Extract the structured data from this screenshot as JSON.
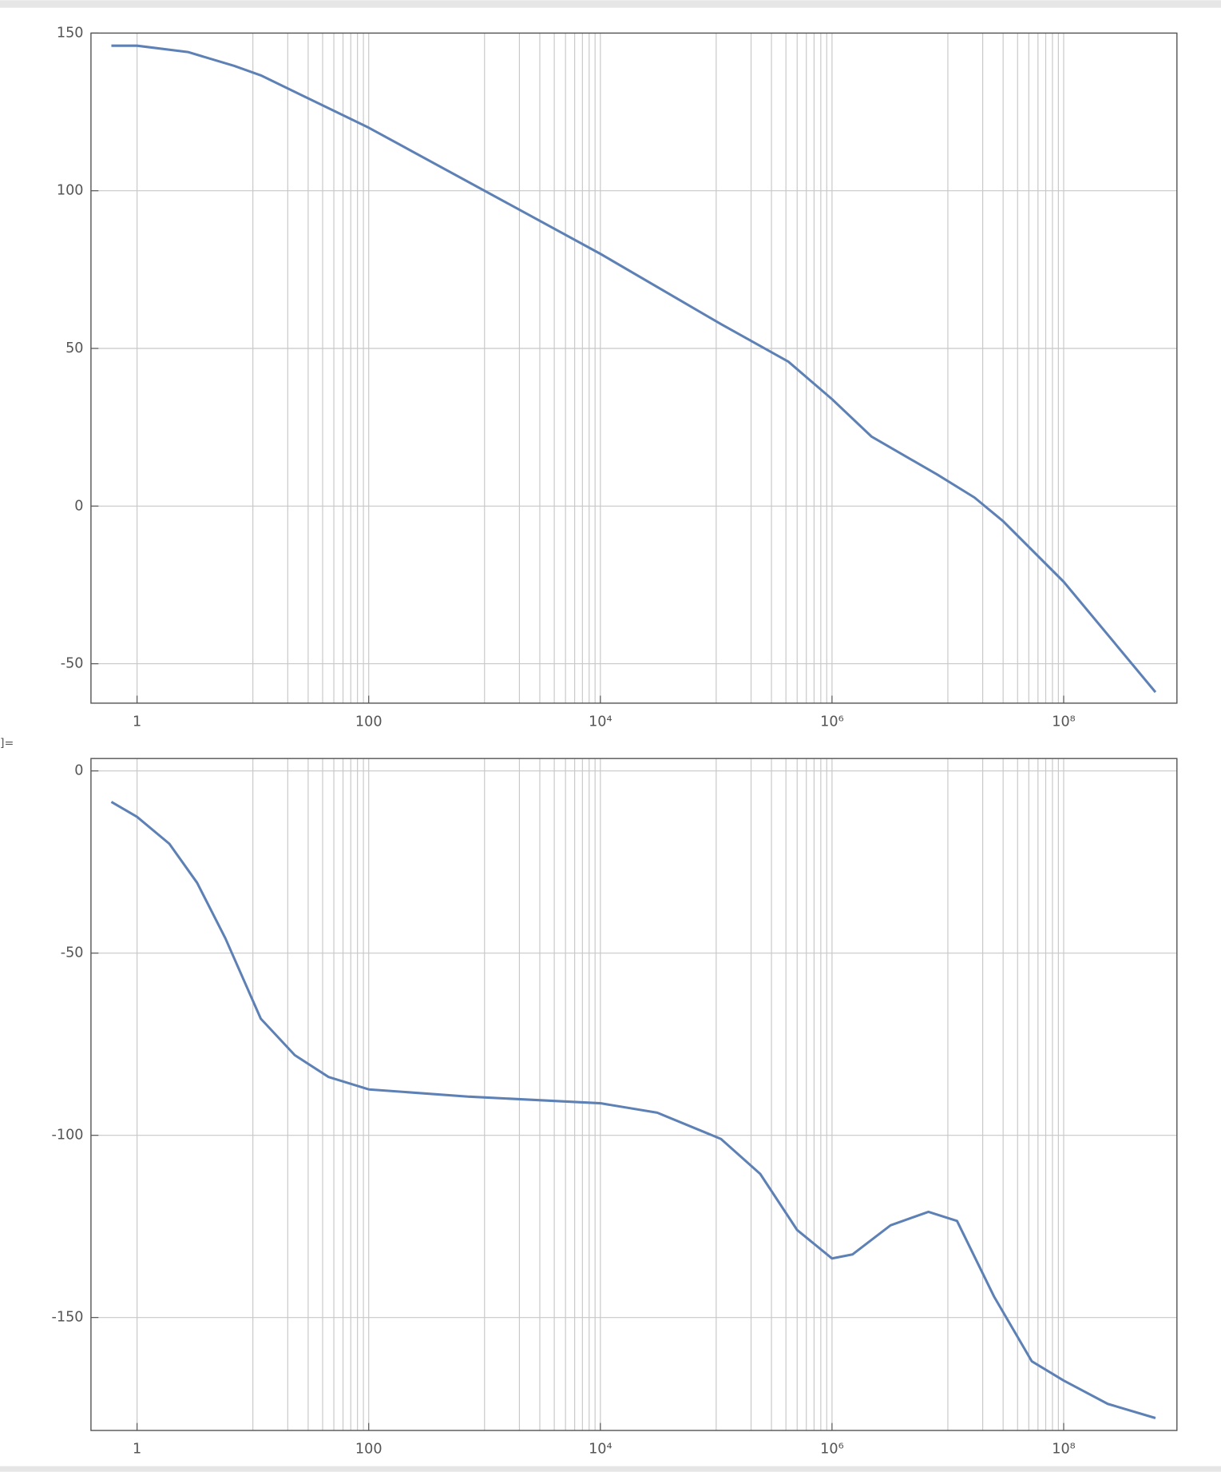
{
  "out_label": "]=",
  "chart_data": [
    {
      "type": "line",
      "xscale": "log",
      "grid": true,
      "color": "#5e81b5",
      "xlim": [
        0.4,
        950000000
      ],
      "ylim": [
        -62.5,
        150
      ],
      "xticks": [
        1,
        100,
        {
          "value": 10000,
          "label": "10⁴"
        },
        {
          "value": 1000000,
          "label": "10⁶"
        },
        {
          "value": 100000000,
          "label": "10⁸"
        }
      ],
      "xgrid": [
        10,
        20,
        30,
        40,
        50,
        60,
        70,
        80,
        90,
        1000,
        2000,
        3000,
        4000,
        5000,
        6000,
        7000,
        8000,
        9000,
        100000,
        200000,
        300000,
        400000,
        500000,
        600000,
        700000,
        800000,
        900000,
        10000000,
        20000000,
        30000000,
        40000000,
        50000000,
        60000000,
        70000000,
        80000000,
        90000000
      ],
      "yticks": [
        -50,
        0,
        50,
        100,
        150
      ],
      "x": [
        0.6,
        1,
        2.75,
        6.9,
        11.7,
        100,
        10000,
        110000,
        420000,
        1000000,
        2200000,
        8100000,
        17000000,
        30000000,
        100000000,
        620000000
      ],
      "values": [
        146,
        146,
        144,
        139.6,
        136.6,
        120,
        80,
        57.7,
        45.8,
        33.9,
        22,
        10,
        2.7,
        -4.8,
        -24,
        -59
      ]
    },
    {
      "type": "line",
      "xscale": "log",
      "grid": true,
      "color": "#5e81b5",
      "xlim": [
        0.4,
        950000000
      ],
      "ylim": [
        -181,
        3.4
      ],
      "xticks": [
        1,
        100,
        {
          "value": 10000,
          "label": "10⁴"
        },
        {
          "value": 1000000,
          "label": "10⁶"
        },
        {
          "value": 100000000,
          "label": "10⁸"
        }
      ],
      "xgrid": [
        10,
        20,
        30,
        40,
        50,
        60,
        70,
        80,
        90,
        1000,
        2000,
        3000,
        4000,
        5000,
        6000,
        7000,
        8000,
        9000,
        100000,
        200000,
        300000,
        400000,
        500000,
        600000,
        700000,
        800000,
        900000,
        10000000,
        20000000,
        30000000,
        40000000,
        50000000,
        60000000,
        70000000,
        80000000,
        90000000
      ],
      "yticks": [
        -150,
        -100,
        -50,
        0
      ],
      "x": [
        0.6,
        1,
        1.9,
        3.3,
        5.8,
        11.7,
        23,
        45,
        100,
        740,
        10000,
        31000,
        110000,
        240000,
        500000,
        1000000,
        1500000,
        3200000,
        6800000,
        12000000,
        25000000,
        53000000,
        100000000,
        240000000,
        620000000
      ],
      "values": [
        -8.5,
        -12.6,
        -20,
        -30.7,
        -46,
        -68,
        -78,
        -84,
        -87.4,
        -89.4,
        -91.2,
        -93.8,
        -101,
        -110.6,
        -126,
        -133.8,
        -132.7,
        -124.7,
        -121,
        -123.5,
        -144.2,
        -162,
        -167.3,
        -173.7,
        -177.6
      ]
    }
  ]
}
